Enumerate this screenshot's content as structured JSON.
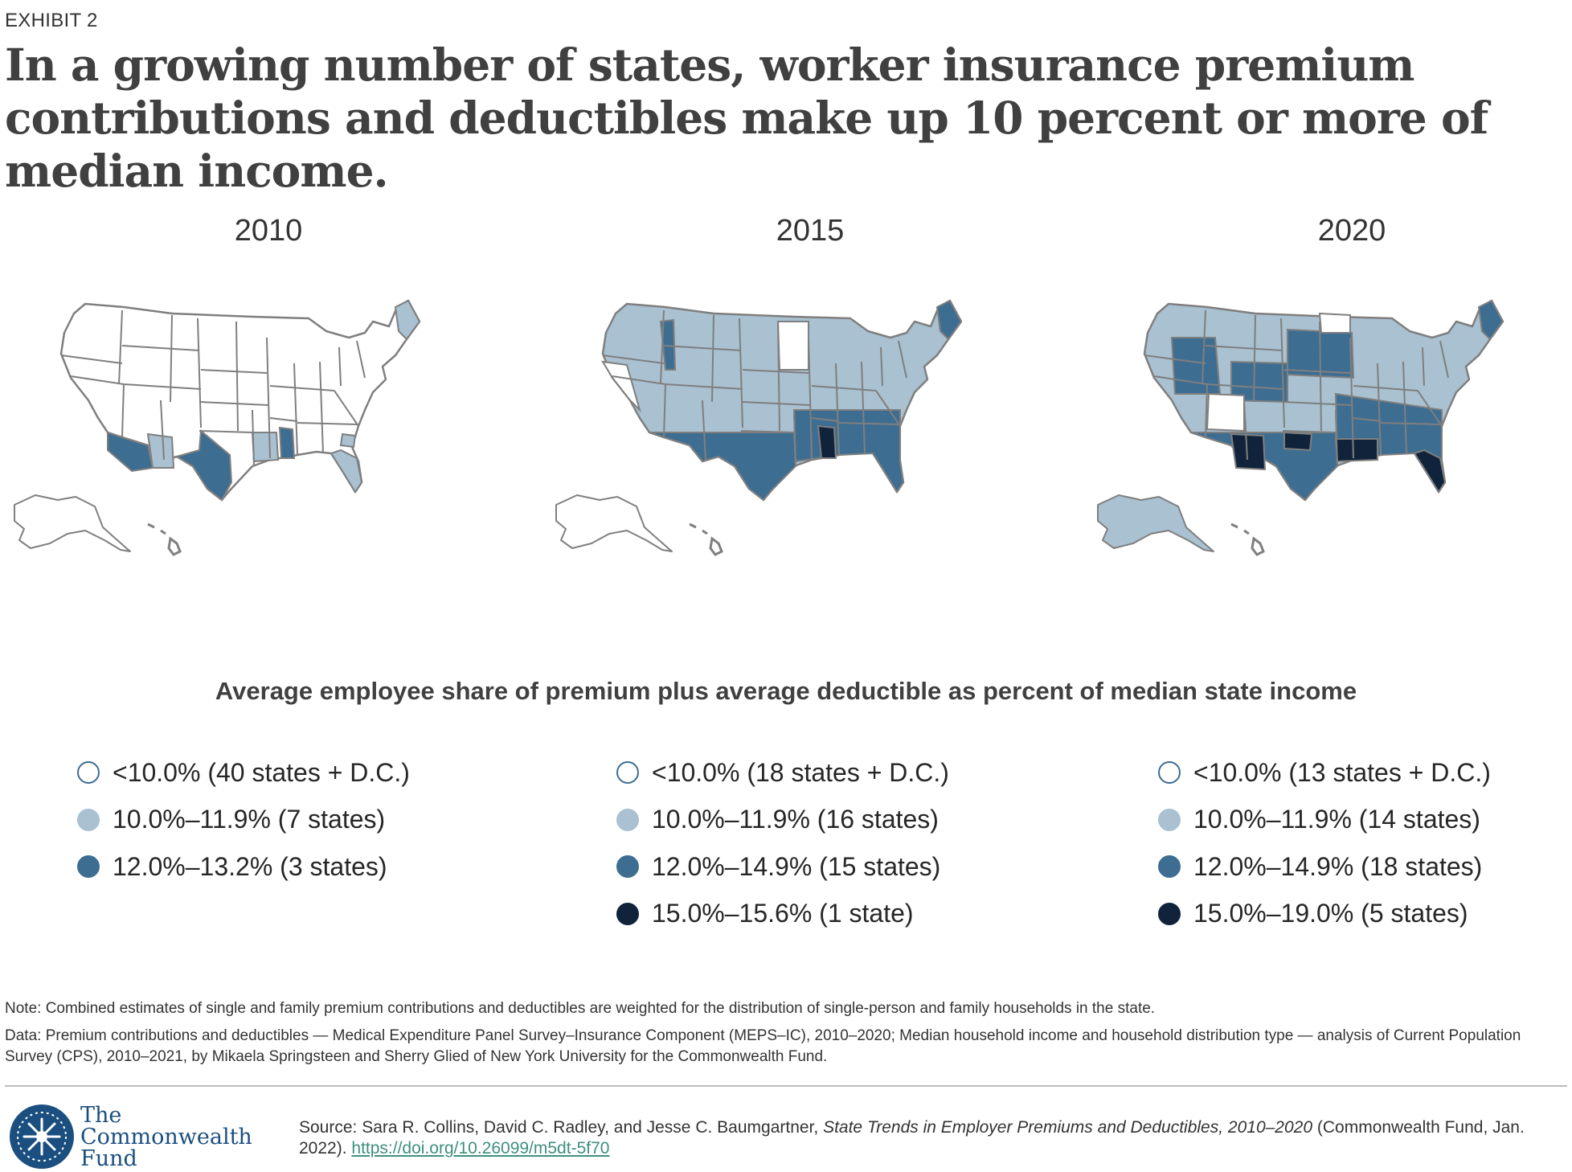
{
  "header": {
    "exhibit": "EXHIBIT 2",
    "title": "In a growing number of states, worker insurance premium contributions and deductibles make up 10 percent or more of median income."
  },
  "colors": {
    "none": "#ffffff",
    "light": "#a9c1d1",
    "mid": "#3d6d91",
    "dark": "#10233b",
    "border": "#7f7f7f"
  },
  "maps": [
    {
      "year": "2010",
      "legend": [
        {
          "label": "<10.0% (40 states + D.C.)",
          "level": "none"
        },
        {
          "label": "10.0%–11.9% (7 states)",
          "level": "light"
        },
        {
          "label": "12.0%–13.2% (3 states)",
          "level": "mid"
        }
      ]
    },
    {
      "year": "2015",
      "legend": [
        {
          "label": "<10.0% (18 states + D.C.)",
          "level": "none"
        },
        {
          "label": "10.0%–11.9% (16 states)",
          "level": "light"
        },
        {
          "label": "12.0%–14.9% (15 states)",
          "level": "mid"
        },
        {
          "label": "15.0%–15.6% (1 state)",
          "level": "dark"
        }
      ]
    },
    {
      "year": "2020",
      "legend": [
        {
          "label": "<10.0% (13 states + D.C.)",
          "level": "none"
        },
        {
          "label": "10.0%–11.9% (14 states)",
          "level": "light"
        },
        {
          "label": "12.0%–14.9% (18 states)",
          "level": "mid"
        },
        {
          "label": "15.0%–19.0% (5 states)",
          "level": "dark"
        }
      ]
    }
  ],
  "legend_title": "Average employee share of premium plus average deductible as percent of median state income",
  "notes": {
    "note": "Note: Combined estimates of single and family premium contributions and deductibles are weighted for the distribution of single-person and family households in the state.",
    "data": "Data: Premium contributions and deductibles — Medical Expenditure Panel Survey–Insurance Component (MEPS–IC), 2010–2020; Median household income and household distribution type — analysis of Current Population Survey (CPS), 2010–2021, by Mikaela Springsteen and Sherry Glied of New York University for the Commonwealth Fund."
  },
  "footer": {
    "logo_line1": "The",
    "logo_line2": "Commonwealth",
    "logo_line3": "Fund",
    "source_prefix": "Source: Sara R. Collins, David C. Radley, and Jesse C. Baumgartner, ",
    "source_title": "State Trends in Employer Premiums and Deductibles, 2010–2020",
    "source_suffix": " (Commonwealth Fund, Jan. 2022). ",
    "source_link": "https://doi.org/10.26099/m5dt-5f70"
  }
}
